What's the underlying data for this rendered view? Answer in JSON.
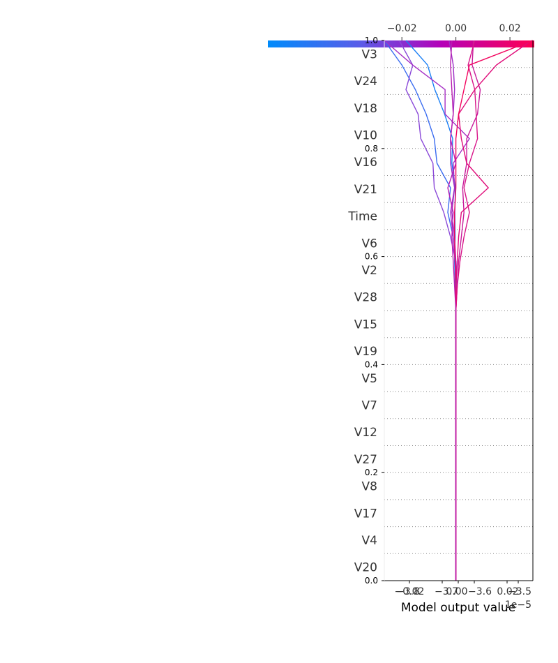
{
  "chart_data": {
    "type": "line",
    "subtype": "shap-decision-plot",
    "features": [
      "V3",
      "V24",
      "V18",
      "V10",
      "V16",
      "V21",
      "Time",
      "V6",
      "V2",
      "V28",
      "V15",
      "V19",
      "V5",
      "V7",
      "V12",
      "V27",
      "V8",
      "V17",
      "V4",
      "V20"
    ],
    "top_axis": {
      "ticks": [
        "−0.02",
        "0.00",
        "0.02"
      ],
      "tick_values": [
        -0.02,
        0.0,
        0.02
      ],
      "xlim": [
        -0.0265,
        0.0285
      ]
    },
    "bottom_axis": {
      "xlabel": "Model output value",
      "offset_text": "1e−5",
      "tick_labels": [
        "−3.8",
        "−0.02",
        "−3.7",
        "0.00",
        "−3.6",
        "0.02",
        "−3.5"
      ]
    },
    "left_axis": {
      "ticks": [
        "0.0",
        "0.2",
        "0.4",
        "0.6",
        "0.8",
        "1.0"
      ],
      "tick_values": [
        0.0,
        0.2,
        0.4,
        0.6,
        0.8,
        1.0
      ]
    },
    "colorbar": {
      "colors": [
        "#008bfb",
        "#7a52e0",
        "#b400b8",
        "#ff0052"
      ]
    },
    "series": [
      {
        "values": [
          0.0,
          0.0,
          0.0,
          0.0,
          0.0,
          0.0,
          0.0,
          0.0,
          0.0,
          0.0,
          0.0,
          0.0,
          -0.0002,
          -0.0005,
          -0.0003,
          -0.0004,
          -0.0002,
          -0.0015,
          -0.0012,
          -0.0042,
          -0.0078,
          -0.0105,
          -0.0185
        ],
        "color": "#1a7ff5"
      },
      {
        "values": [
          0.0,
          0.0,
          0.0,
          0.0,
          0.0,
          0.0,
          0.0,
          0.0,
          0.0,
          0.0,
          0.0,
          0.0,
          0.0004,
          -0.0002,
          -0.001,
          -0.003,
          -0.002,
          -0.007,
          -0.008,
          -0.011,
          -0.015,
          -0.02,
          -0.0265
        ],
        "color": "#3a6cf0"
      },
      {
        "values": [
          0.0,
          0.0,
          0.0,
          0.0,
          0.0,
          0.0,
          0.0,
          0.0,
          0.0,
          0.0,
          0.0,
          0.0,
          0.0002,
          0.0,
          -0.002,
          -0.0045,
          -0.008,
          -0.0085,
          -0.013,
          -0.014,
          -0.0185,
          -0.016,
          -0.021
        ],
        "color": "#8a48d8"
      },
      {
        "values": [
          0.0,
          0.0,
          0.0,
          0.0,
          0.0,
          0.0,
          0.0,
          0.0,
          0.0,
          0.0,
          0.0,
          0.0,
          0.0003,
          -0.0003,
          -0.001,
          -0.002,
          -0.0005,
          -0.001,
          0.005,
          -0.004,
          -0.004,
          -0.016,
          -0.0265
        ],
        "color": "#a630c5"
      },
      {
        "values": [
          0.0,
          0.0,
          0.0,
          0.0,
          0.0,
          0.0,
          0.0,
          0.0,
          0.0,
          0.0,
          0.0,
          0.0,
          0.0,
          0.0,
          -0.0005,
          -0.0015,
          -0.0005,
          -0.002,
          -0.002,
          -0.001,
          -0.0005,
          -0.001,
          -0.0025
        ],
        "color": "#9e2ec6"
      },
      {
        "values": [
          0.0,
          0.0,
          0.0,
          0.0,
          0.0,
          0.0,
          0.0,
          0.0,
          0.0,
          0.0,
          0.0,
          0.0,
          0.0005,
          0.001,
          0.002,
          0.003,
          0.0025,
          0.004,
          0.004,
          0.008,
          0.009,
          0.006,
          0.0065
        ],
        "color": "#c81a9b"
      },
      {
        "values": [
          0.0,
          0.0,
          0.0,
          0.0,
          0.0,
          0.0,
          0.0,
          0.0,
          0.0,
          0.0,
          0.0,
          0.0,
          0.0005,
          0.0015,
          0.003,
          0.005,
          0.003,
          0.005,
          0.008,
          0.0075,
          0.007,
          0.0045,
          0.007
        ],
        "color": "#d81489"
      },
      {
        "values": [
          0.0,
          0.0,
          0.0,
          0.0,
          0.0,
          0.0,
          0.0,
          0.0,
          0.0,
          0.0,
          0.0,
          0.0,
          0.0,
          0.0005,
          0.001,
          0.002,
          0.012,
          0.004,
          0.002,
          0.001,
          0.007,
          0.015,
          0.028
        ],
        "color": "#e00c7a"
      },
      {
        "values": [
          0.0,
          0.0,
          0.0,
          0.0,
          0.0,
          0.0,
          0.0,
          0.0,
          0.0,
          0.0,
          0.0,
          0.0,
          0.0,
          -0.0003,
          -0.0005,
          -0.0005,
          0.0,
          0.0,
          0.0,
          0.001,
          0.003,
          0.005,
          0.0285
        ],
        "color": "#f2055f"
      },
      {
        "values": [
          0.0,
          0.0,
          0.0,
          0.0,
          0.0,
          0.0,
          0.0,
          0.0,
          0.0,
          0.0,
          0.0,
          0.0,
          -0.0005,
          -0.001,
          -0.0015,
          -0.001,
          -0.003,
          0.0,
          -0.002,
          -0.001,
          -0.0015,
          -0.002,
          -0.0015
        ],
        "color": "#b81cb0"
      }
    ]
  }
}
